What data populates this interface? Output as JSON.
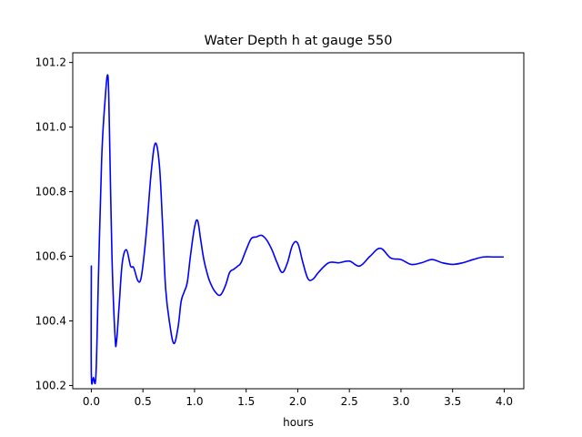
{
  "chart_data": {
    "type": "line",
    "title": "Water Depth h at gauge 550",
    "xlabel": "hours",
    "ylabel": "",
    "xlim": [
      -0.18,
      4.19
    ],
    "ylim": [
      100.19,
      101.23
    ],
    "xticks": [
      0.0,
      0.5,
      1.0,
      1.5,
      2.0,
      2.5,
      3.0,
      3.5,
      4.0
    ],
    "xtick_labels": [
      "0.0",
      "0.5",
      "1.0",
      "1.5",
      "2.0",
      "2.5",
      "3.0",
      "3.5",
      "4.0"
    ],
    "yticks": [
      100.2,
      100.4,
      100.6,
      100.8,
      101.0,
      101.2
    ],
    "ytick_labels": [
      "100.2",
      "100.4",
      "100.6",
      "100.8",
      "101.0",
      "101.2"
    ],
    "grid": false,
    "legend": "none",
    "series": [
      {
        "color": "#0000ff",
        "x": [
          0.0,
          0.0,
          0.02,
          0.045,
          0.07,
          0.1,
          0.13,
          0.16,
          0.175,
          0.2,
          0.23,
          0.245,
          0.27,
          0.3,
          0.34,
          0.38,
          0.41,
          0.45,
          0.48,
          0.51,
          0.54,
          0.58,
          0.62,
          0.66,
          0.69,
          0.72,
          0.76,
          0.8,
          0.84,
          0.87,
          0.9,
          0.93,
          0.96,
          1.0,
          1.03,
          1.06,
          1.09,
          1.12,
          1.15,
          1.2,
          1.25,
          1.3,
          1.34,
          1.38,
          1.42,
          1.45,
          1.5,
          1.55,
          1.6,
          1.65,
          1.7,
          1.75,
          1.8,
          1.85,
          1.9,
          1.95,
          2.0,
          2.05,
          2.1,
          2.15,
          2.2,
          2.3,
          2.4,
          2.5,
          2.6,
          2.7,
          2.8,
          2.9,
          3.0,
          3.1,
          3.2,
          3.3,
          3.4,
          3.5,
          3.6,
          3.7,
          3.8,
          3.9,
          3.99
        ],
        "values": [
          100.57,
          100.235,
          100.225,
          100.235,
          100.55,
          100.9,
          101.07,
          101.16,
          101.0,
          100.6,
          100.35,
          100.34,
          100.45,
          100.58,
          100.62,
          100.57,
          100.565,
          100.525,
          100.53,
          100.6,
          100.7,
          100.86,
          100.95,
          100.88,
          100.7,
          100.5,
          100.39,
          100.33,
          100.38,
          100.46,
          100.49,
          100.52,
          100.6,
          100.69,
          100.71,
          100.65,
          100.59,
          100.55,
          100.52,
          100.49,
          100.48,
          100.51,
          100.55,
          100.56,
          100.57,
          100.58,
          100.62,
          100.655,
          100.66,
          100.665,
          100.65,
          100.62,
          100.58,
          100.55,
          100.58,
          100.635,
          100.64,
          100.58,
          100.53,
          100.53,
          100.55,
          100.58,
          100.58,
          100.585,
          100.57,
          100.6,
          100.625,
          100.595,
          100.59,
          100.575,
          100.58,
          100.59,
          100.58,
          100.575,
          100.58,
          100.59,
          100.598,
          100.598,
          100.598
        ]
      }
    ]
  }
}
